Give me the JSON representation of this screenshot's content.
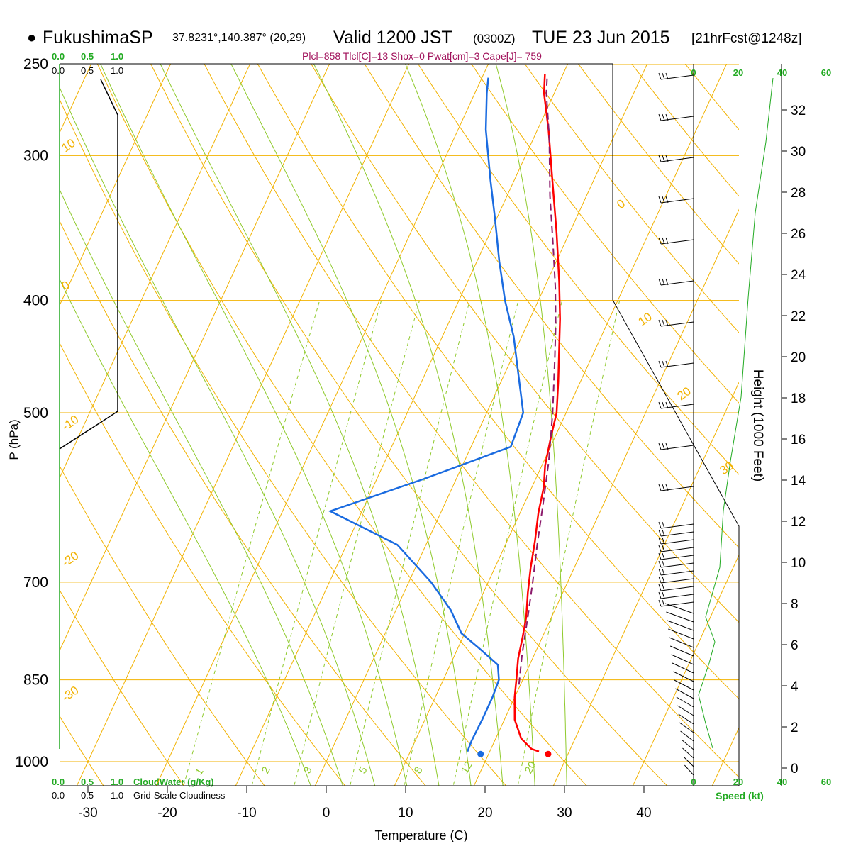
{
  "header": {
    "station_dot": "●",
    "station": "FukushimaSP",
    "coords": "37.8231°,140.387° (20,29)",
    "valid": "Valid 1200 JST",
    "utc": "(0300Z)",
    "date": "TUE 23 Jun 2015",
    "forecast": "[21hrFcst@1248z]",
    "indices": "Plcl=858 Tlcl[C]=13 Shox=0 Pwat[cm]=3 Cape[J]= 759"
  },
  "chart_data": {
    "type": "line",
    "chart_kind": "skew-t log-p sounding",
    "xlabel": "Temperature (C)",
    "ylabel": "P (hPa)",
    "y2label": "Height (1000 Feet)",
    "temperature_ticks": [
      -30,
      -20,
      -10,
      0,
      10,
      20,
      30,
      40
    ],
    "pressure_levels": [
      250,
      300,
      400,
      500,
      700,
      850,
      1000
    ],
    "height_ticks_kft": [
      0,
      2,
      4,
      6,
      8,
      10,
      12,
      14,
      16,
      18,
      20,
      22,
      24,
      26,
      28,
      30,
      32
    ],
    "dry_adiabat_labels": [
      "10",
      "0",
      "-10",
      "-20",
      "-30",
      "0",
      "10",
      "20",
      "30"
    ],
    "mixing_ratio_labels": [
      "1",
      "2",
      "3",
      "5",
      "8",
      "12",
      "20"
    ],
    "cloud_scale_top": [
      "0.0",
      "0.5",
      "1.0"
    ],
    "cloud_scale_top2": [
      "0.0",
      "0.5",
      "1.0"
    ],
    "cloud_scale_bottom": [
      "0.0",
      "0.5",
      "1.0"
    ],
    "cloud_scale_bottom2": [
      "0.0",
      "0.5",
      "1.0"
    ],
    "cloud_water_label": "CloudWater (g/Kg)",
    "cloudiness_label": "Grid-Scale Cloudiness",
    "speed_ticks": [
      "0",
      "20",
      "40",
      "60"
    ],
    "speed_ticks_bottom": [
      "0",
      "20",
      "40",
      "60"
    ],
    "speed_label": "Speed (kt)",
    "series": [
      {
        "name": "Temperature",
        "color": "#ff0000",
        "points": [
          [
            26.2,
            980
          ],
          [
            25.1,
            975
          ],
          [
            23.2,
            955
          ],
          [
            21.3,
            920
          ],
          [
            20.0,
            880
          ],
          [
            19.2,
            850
          ],
          [
            18.2,
            815
          ],
          [
            17.5,
            780
          ],
          [
            16.8,
            750
          ],
          [
            15.6,
            715
          ],
          [
            14.5,
            680
          ],
          [
            13.5,
            645
          ],
          [
            12.3,
            610
          ],
          [
            11.5,
            580
          ],
          [
            10.4,
            555
          ],
          [
            9.5,
            525
          ],
          [
            8.8,
            500
          ],
          [
            7.2,
            470
          ],
          [
            5.4,
            440
          ],
          [
            3.8,
            415
          ],
          [
            1.5,
            385
          ],
          [
            -1.6,
            350
          ],
          [
            -5.2,
            315
          ],
          [
            -8.6,
            285
          ],
          [
            -11.3,
            265
          ],
          [
            -12.3,
            255
          ]
        ]
      },
      {
        "name": "Dewpoint",
        "color": "#1a6be0",
        "points": [
          [
            17.2,
            980
          ],
          [
            17.1,
            960
          ],
          [
            17.2,
            920
          ],
          [
            17.2,
            880
          ],
          [
            17.0,
            850
          ],
          [
            16.0,
            825
          ],
          [
            12.9,
            800
          ],
          [
            9.6,
            775
          ],
          [
            6.9,
            740
          ],
          [
            2.8,
            700
          ],
          [
            -3.6,
            650
          ],
          [
            -14.0,
            608
          ],
          [
            -4.0,
            570
          ],
          [
            5.0,
            535
          ],
          [
            4.6,
            500
          ],
          [
            1.9,
            465
          ],
          [
            -1.0,
            430
          ],
          [
            -4.2,
            400
          ],
          [
            -7.2,
            370
          ],
          [
            -10.2,
            340
          ],
          [
            -13.0,
            315
          ],
          [
            -16.5,
            285
          ],
          [
            -18.5,
            265
          ],
          [
            -19.2,
            257
          ]
        ]
      },
      {
        "name": "Parcel",
        "color": "#8b1a6b",
        "points": [
          [
            19.8,
            858
          ],
          [
            18.5,
            810
          ],
          [
            17.0,
            750
          ],
          [
            15.6,
            700
          ],
          [
            14.0,
            650
          ],
          [
            12.4,
            600
          ],
          [
            10.6,
            550
          ],
          [
            8.3,
            500
          ],
          [
            5.5,
            450
          ],
          [
            3.6,
            420
          ],
          [
            1.4,
            390
          ],
          [
            -1.2,
            360
          ],
          [
            -4.6,
            325
          ],
          [
            -8.0,
            290
          ],
          [
            -11.0,
            265
          ],
          [
            -12.0,
            255
          ]
        ]
      }
    ],
    "surface_temperature": 27.5,
    "surface_dewpoint": 19.0,
    "surface_pressure": 985
  }
}
